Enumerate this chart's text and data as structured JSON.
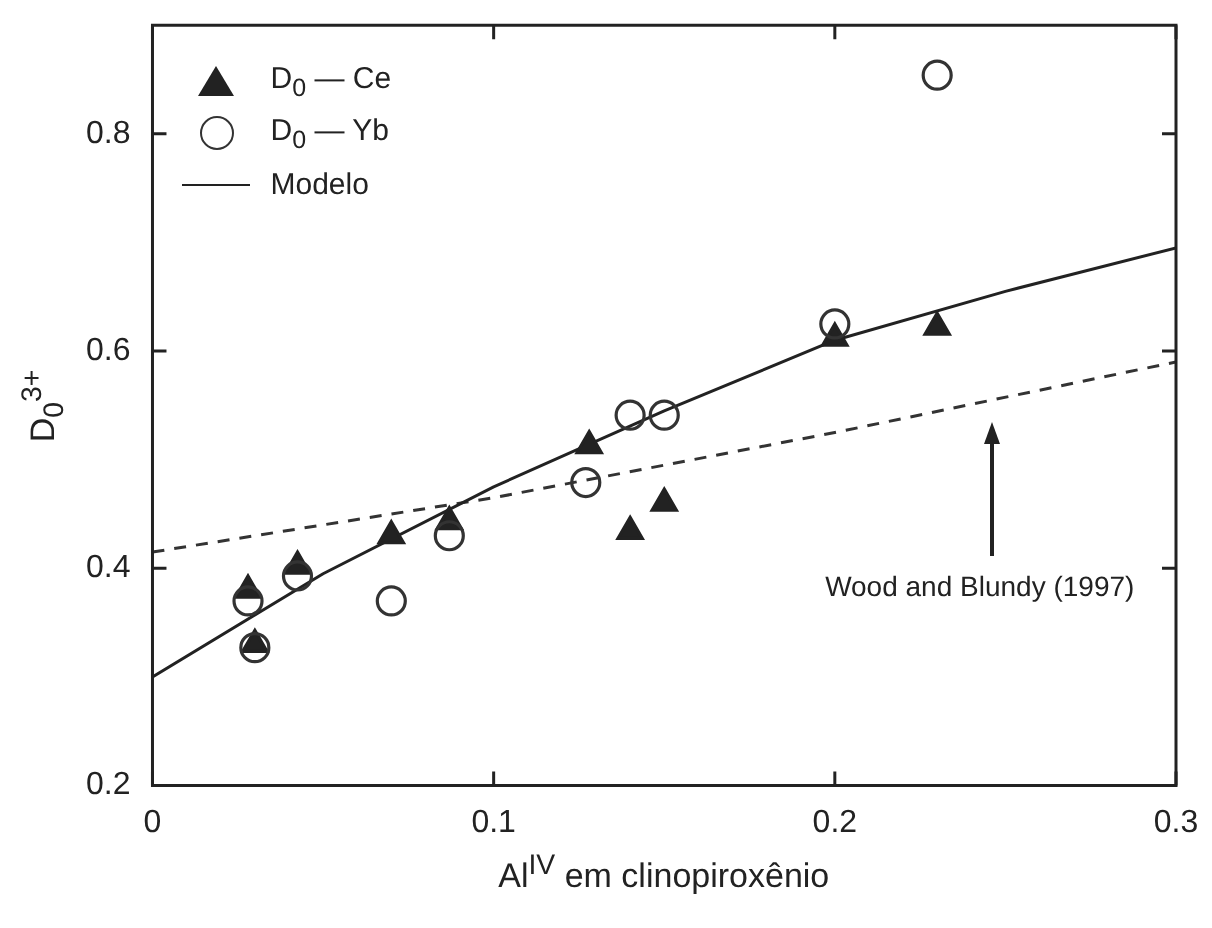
{
  "chart_data": {
    "type": "scatter",
    "xlabel": "Al$^{IV}$ em clinopiroxênio",
    "ylabel": "D$_{0}$$^{3+}$",
    "xlim": [
      0,
      0.3
    ],
    "xticks": [
      0,
      0.1,
      0.2,
      0.3
    ],
    "ylim": [
      0.2,
      0.9
    ],
    "yticks": [
      0.2,
      0.4,
      0.6,
      0.8
    ],
    "grid": false,
    "legend": "top left",
    "series": [
      {
        "name": "D$_{0}$ — Yb",
        "marker": "circle",
        "color": "#333333",
        "x": [
          0.028,
          0.03,
          0.0425,
          0.07,
          0.087,
          0.127,
          0.14,
          0.15,
          0.2,
          0.23
        ],
        "values": [
          0.37,
          0.327,
          0.393,
          0.37,
          0.43,
          0.479,
          0.541,
          0.541,
          0.625,
          0.854
        ]
      },
      {
        "name": "D$_{0}$ — Ce",
        "marker": "triangle",
        "color": "#222222",
        "x": [
          0.028,
          0.03,
          0.0425,
          0.07,
          0.087,
          0.128,
          0.14,
          0.15,
          0.2,
          0.23
        ],
        "values": [
          0.38,
          0.33,
          0.402,
          0.43,
          0.443,
          0.513,
          0.434,
          0.46,
          0.612,
          0.622
        ]
      },
      {
        "name": "Modelo",
        "type": "line",
        "line_style": "solid",
        "marker": "none",
        "color": "#222222",
        "x": [
          0,
          0.05,
          0.1,
          0.15,
          0.2,
          0.25,
          0.3
        ],
        "values": [
          0.3,
          0.395,
          0.475,
          0.545,
          0.61,
          0.655,
          0.695
        ]
      },
      {
        "type": "line",
        "line_style": "dashed",
        "marker": "none",
        "color": "#333333",
        "x": [
          0,
          0.1,
          0.2,
          0.3
        ],
        "values": [
          0.415,
          0.465,
          0.525,
          0.59
        ]
      }
    ],
    "annotations": [
      "Wood and Blundy (1997)"
    ]
  }
}
